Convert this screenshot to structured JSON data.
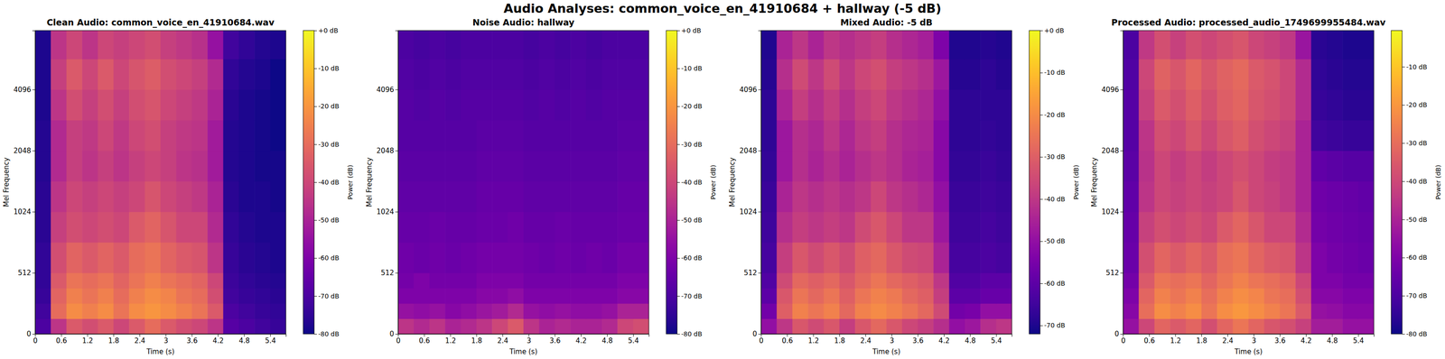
{
  "title": "Audio Analyses: common_voice_en_41910684 + hallway (-5 dB)",
  "chart_data": [
    {
      "type": "heatmap",
      "title": "Clean Audio: common_voice_en_41910684.wav",
      "x_label": "Time (s)",
      "y_label": "Mel Frequency",
      "color": "plasma",
      "xlim": [
        0,
        5.76
      ],
      "xticks": [
        0,
        0.6,
        1.2,
        1.8,
        2.4,
        3,
        3.6,
        4.2,
        4.8,
        5.4
      ],
      "ylim": [
        0,
        8000
      ],
      "yticks": [
        0,
        512,
        1024,
        2048,
        4096
      ],
      "time_edges": [
        0,
        0.36,
        0.72,
        1.08,
        1.44,
        1.8,
        2.16,
        2.52,
        2.88,
        3.24,
        3.6,
        3.96,
        4.32,
        4.68,
        5.04,
        5.4,
        5.76
      ],
      "freq_edges": [
        0,
        128,
        256,
        384,
        512,
        768,
        1024,
        1448,
        2048,
        2896,
        4096,
        5793,
        8000
      ],
      "cells": [
        [
          -70,
          -45,
          -35,
          -38,
          -35,
          -40,
          -35,
          -30,
          -35,
          -38,
          -40,
          -45,
          -68,
          -70,
          -72,
          -74
        ],
        [
          -72,
          -30,
          -22,
          -25,
          -22,
          -28,
          -22,
          -20,
          -22,
          -25,
          -28,
          -35,
          -70,
          -72,
          -74,
          -75
        ],
        [
          -74,
          -32,
          -25,
          -28,
          -25,
          -30,
          -25,
          -22,
          -24,
          -28,
          -30,
          -38,
          -72,
          -74,
          -75,
          -76
        ],
        [
          -75,
          -35,
          -28,
          -30,
          -28,
          -32,
          -28,
          -25,
          -28,
          -30,
          -32,
          -40,
          -73,
          -75,
          -76,
          -77
        ],
        [
          -75,
          -38,
          -32,
          -35,
          -32,
          -35,
          -30,
          -28,
          -32,
          -35,
          -36,
          -45,
          -74,
          -76,
          -77,
          -78
        ],
        [
          -76,
          -42,
          -38,
          -40,
          -38,
          -40,
          -35,
          -32,
          -36,
          -40,
          -40,
          -48,
          -75,
          -77,
          -78,
          -78
        ],
        [
          -76,
          -45,
          -40,
          -42,
          -40,
          -42,
          -40,
          -36,
          -40,
          -42,
          -44,
          -50,
          -76,
          -78,
          -78,
          -79
        ],
        [
          -77,
          -48,
          -42,
          -45,
          -42,
          -45,
          -42,
          -40,
          -42,
          -45,
          -46,
          -52,
          -77,
          -78,
          -79,
          -79
        ],
        [
          -77,
          -48,
          -42,
          -44,
          -40,
          -44,
          -40,
          -38,
          -42,
          -44,
          -45,
          -52,
          -77,
          -78,
          -79,
          -80
        ],
        [
          -78,
          -45,
          -38,
          -42,
          -38,
          -42,
          -38,
          -36,
          -40,
          -42,
          -44,
          -50,
          -76,
          -78,
          -79,
          -80
        ],
        [
          -78,
          -42,
          -35,
          -40,
          -35,
          -40,
          -36,
          -34,
          -38,
          -40,
          -42,
          -48,
          -75,
          -77,
          -78,
          -80
        ],
        [
          -78,
          -45,
          -40,
          -45,
          -40,
          -42,
          -40,
          -38,
          -42,
          -44,
          -46,
          -55,
          -72,
          -75,
          -77,
          -78
        ]
      ],
      "colorbar": {
        "label": "Power (dB)",
        "range": [
          -80,
          0
        ],
        "ticks": [
          {
            "value": 0,
            "label": "+0 dB"
          },
          {
            "value": -10,
            "label": "-10 dB"
          },
          {
            "value": -20,
            "label": "-20 dB"
          },
          {
            "value": -30,
            "label": "-30 dB"
          },
          {
            "value": -40,
            "label": "-40 dB"
          },
          {
            "value": -50,
            "label": "-50 dB"
          },
          {
            "value": -60,
            "label": "-60 dB"
          },
          {
            "value": -70,
            "label": "-70 dB"
          },
          {
            "value": -80,
            "label": "-80 dB"
          }
        ]
      }
    },
    {
      "type": "heatmap",
      "title": "Noise Audio: hallway",
      "x_label": "Time (s)",
      "y_label": "Mel Frequency",
      "color": "plasma",
      "xlim": [
        0,
        5.76
      ],
      "xticks": [
        0,
        0.6,
        1.2,
        1.8,
        2.4,
        3,
        3.6,
        4.2,
        4.8,
        5.4
      ],
      "ylim": [
        0,
        8000
      ],
      "yticks": [
        0,
        512,
        1024,
        2048,
        4096
      ],
      "time_edges": [
        0,
        0.36,
        0.72,
        1.08,
        1.44,
        1.8,
        2.16,
        2.52,
        2.88,
        3.24,
        3.6,
        3.96,
        4.32,
        4.68,
        5.04,
        5.4,
        5.76
      ],
      "freq_edges": [
        0,
        128,
        256,
        384,
        512,
        768,
        1024,
        1448,
        2048,
        2896,
        4096,
        5793,
        8000
      ],
      "cells": [
        [
          -45,
          -48,
          -45,
          -50,
          -48,
          -45,
          -40,
          -35,
          -45,
          -50,
          -48,
          -50,
          -50,
          -48,
          -40,
          -38
        ],
        [
          -55,
          -56,
          -55,
          -58,
          -56,
          -54,
          -52,
          -48,
          -55,
          -56,
          -55,
          -56,
          -56,
          -55,
          -50,
          -50
        ],
        [
          -60,
          -60,
          -60,
          -60,
          -60,
          -58,
          -58,
          -56,
          -60,
          -60,
          -60,
          -60,
          -60,
          -60,
          -58,
          -58
        ],
        [
          -62,
          -60,
          -62,
          -62,
          -62,
          -60,
          -60,
          -60,
          -62,
          -62,
          -62,
          -62,
          -62,
          -62,
          -60,
          -60
        ],
        [
          -63,
          -64,
          -63,
          -64,
          -63,
          -62,
          -62,
          -62,
          -63,
          -64,
          -63,
          -64,
          -63,
          -64,
          -62,
          -62
        ],
        [
          -65,
          -65,
          -64,
          -65,
          -65,
          -64,
          -64,
          -63,
          -65,
          -65,
          -64,
          -65,
          -65,
          -65,
          -64,
          -64
        ],
        [
          -66,
          -66,
          -66,
          -66,
          -66,
          -65,
          -65,
          -65,
          -66,
          -66,
          -66,
          -66,
          -66,
          -66,
          -65,
          -65
        ],
        [
          -67,
          -67,
          -67,
          -67,
          -67,
          -66,
          -66,
          -66,
          -67,
          -67,
          -67,
          -67,
          -67,
          -67,
          -66,
          -66
        ],
        [
          -68,
          -68,
          -68,
          -68,
          -68,
          -67,
          -67,
          -67,
          -68,
          -68,
          -68,
          -68,
          -68,
          -68,
          -67,
          -67
        ],
        [
          -68,
          -69,
          -68,
          -69,
          -68,
          -68,
          -68,
          -68,
          -69,
          -68,
          -69,
          -68,
          -69,
          -68,
          -68,
          -68
        ],
        [
          -69,
          -70,
          -69,
          -70,
          -69,
          -69,
          -69,
          -69,
          -70,
          -69,
          -70,
          -69,
          -70,
          -69,
          -69,
          -69
        ],
        [
          -70,
          -71,
          -70,
          -71,
          -70,
          -70,
          -70,
          -70,
          -71,
          -70,
          -71,
          -70,
          -71,
          -70,
          -70,
          -70
        ]
      ],
      "colorbar": {
        "label": "Power (dB)",
        "range": [
          -80,
          0
        ],
        "ticks": [
          {
            "value": 0,
            "label": "+0 dB"
          },
          {
            "value": -10,
            "label": "-10 dB"
          },
          {
            "value": -20,
            "label": "-20 dB"
          },
          {
            "value": -30,
            "label": "-30 dB"
          },
          {
            "value": -40,
            "label": "-40 dB"
          },
          {
            "value": -50,
            "label": "-50 dB"
          },
          {
            "value": -60,
            "label": "-60 dB"
          },
          {
            "value": -70,
            "label": "-70 dB"
          },
          {
            "value": -80,
            "label": "-80 dB"
          }
        ]
      }
    },
    {
      "type": "heatmap",
      "title": "Mixed Audio: -5 dB",
      "x_label": "Time (s)",
      "y_label": "Mel Frequency",
      "color": "plasma",
      "xlim": [
        0,
        5.76
      ],
      "xticks": [
        0,
        0.6,
        1.2,
        1.8,
        2.4,
        3,
        3.6,
        4.2,
        4.8,
        5.4
      ],
      "ylim": [
        0,
        8000
      ],
      "yticks": [
        0,
        512,
        1024,
        2048,
        4096
      ],
      "time_edges": [
        0,
        0.36,
        0.72,
        1.08,
        1.44,
        1.8,
        2.16,
        2.52,
        2.88,
        3.24,
        3.6,
        3.96,
        4.32,
        4.68,
        5.04,
        5.4,
        5.76
      ],
      "freq_edges": [
        0,
        128,
        256,
        384,
        512,
        768,
        1024,
        1448,
        2048,
        2896,
        4096,
        5793,
        8000
      ],
      "cells": [
        [
          -50,
          -40,
          -32,
          -35,
          -32,
          -38,
          -32,
          -28,
          -32,
          -36,
          -38,
          -42,
          -50,
          -48,
          -42,
          -40
        ],
        [
          -56,
          -30,
          -22,
          -25,
          -22,
          -28,
          -22,
          -20,
          -22,
          -25,
          -28,
          -35,
          -56,
          -55,
          -50,
          -50
        ],
        [
          -60,
          -32,
          -25,
          -28,
          -25,
          -30,
          -25,
          -22,
          -24,
          -28,
          -30,
          -38,
          -60,
          -60,
          -58,
          -58
        ],
        [
          -62,
          -35,
          -28,
          -30,
          -28,
          -32,
          -28,
          -25,
          -28,
          -30,
          -32,
          -40,
          -62,
          -62,
          -60,
          -60
        ],
        [
          -64,
          -38,
          -32,
          -35,
          -32,
          -35,
          -30,
          -28,
          -32,
          -35,
          -36,
          -45,
          -64,
          -64,
          -63,
          -64
        ],
        [
          -65,
          -42,
          -38,
          -40,
          -38,
          -40,
          -35,
          -32,
          -36,
          -40,
          -40,
          -48,
          -65,
          -65,
          -64,
          -65
        ],
        [
          -66,
          -45,
          -40,
          -42,
          -40,
          -42,
          -40,
          -36,
          -40,
          -42,
          -44,
          -50,
          -66,
          -66,
          -65,
          -66
        ],
        [
          -67,
          -48,
          -42,
          -45,
          -42,
          -45,
          -42,
          -40,
          -42,
          -45,
          -46,
          -52,
          -67,
          -67,
          -66,
          -67
        ],
        [
          -68,
          -48,
          -42,
          -44,
          -40,
          -44,
          -40,
          -38,
          -42,
          -44,
          -45,
          -52,
          -68,
          -68,
          -67,
          -68
        ],
        [
          -68,
          -45,
          -38,
          -42,
          -38,
          -42,
          -38,
          -36,
          -40,
          -42,
          -44,
          -50,
          -68,
          -68,
          -68,
          -68
        ],
        [
          -69,
          -42,
          -35,
          -40,
          -35,
          -40,
          -36,
          -34,
          -38,
          -40,
          -42,
          -48,
          -69,
          -69,
          -68,
          -69
        ],
        [
          -70,
          -45,
          -40,
          -45,
          -40,
          -42,
          -40,
          -38,
          -42,
          -44,
          -46,
          -54,
          -70,
          -70,
          -69,
          -70
        ]
      ],
      "colorbar": {
        "label": "Power (dB)",
        "range": [
          -72,
          0
        ],
        "ticks": [
          {
            "value": 0,
            "label": "+0 dB"
          },
          {
            "value": -10,
            "label": "-10 dB"
          },
          {
            "value": -20,
            "label": "-20 dB"
          },
          {
            "value": -30,
            "label": "-30 dB"
          },
          {
            "value": -40,
            "label": "-40 dB"
          },
          {
            "value": -50,
            "label": "-50 dB"
          },
          {
            "value": -60,
            "label": "-60 dB"
          },
          {
            "value": -70,
            "label": "-70 dB"
          }
        ]
      }
    },
    {
      "type": "heatmap",
      "title": "Processed Audio: processed_audio_1749699955484.wav",
      "x_label": "Time (s)",
      "y_label": "Mel Frequency",
      "color": "plasma",
      "xlim": [
        0,
        5.76
      ],
      "xticks": [
        0,
        0.6,
        1.2,
        1.8,
        2.4,
        3,
        3.6,
        4.2,
        4.8,
        5.4
      ],
      "ylim": [
        0,
        8000
      ],
      "yticks": [
        0,
        512,
        1024,
        2048,
        4096
      ],
      "time_edges": [
        0,
        0.36,
        0.72,
        1.08,
        1.44,
        1.8,
        2.16,
        2.52,
        2.88,
        3.24,
        3.6,
        3.96,
        4.32,
        4.68,
        5.04,
        5.4,
        5.76
      ],
      "freq_edges": [
        0,
        128,
        256,
        384,
        512,
        768,
        1024,
        1448,
        2048,
        2896,
        4096,
        5793,
        8000
      ],
      "cells": [
        [
          -55,
          -40,
          -32,
          -35,
          -32,
          -38,
          -32,
          -28,
          -32,
          -36,
          -38,
          -42,
          -52,
          -52,
          -55,
          -55
        ],
        [
          -58,
          -30,
          -22,
          -25,
          -22,
          -28,
          -22,
          -20,
          -22,
          -25,
          -28,
          -35,
          -55,
          -56,
          -58,
          -58
        ],
        [
          -60,
          -32,
          -25,
          -28,
          -25,
          -30,
          -25,
          -22,
          -24,
          -28,
          -30,
          -38,
          -58,
          -58,
          -60,
          -60
        ],
        [
          -62,
          -35,
          -28,
          -30,
          -28,
          -32,
          -28,
          -25,
          -28,
          -30,
          -32,
          -40,
          -60,
          -60,
          -62,
          -62
        ],
        [
          -64,
          -38,
          -32,
          -35,
          -32,
          -35,
          -30,
          -28,
          -32,
          -35,
          -36,
          -45,
          -60,
          -62,
          -63,
          -64
        ],
        [
          -65,
          -42,
          -38,
          -40,
          -38,
          -40,
          -35,
          -32,
          -36,
          -40,
          -40,
          -48,
          -62,
          -63,
          -64,
          -65
        ],
        [
          -66,
          -45,
          -40,
          -42,
          -40,
          -42,
          -40,
          -36,
          -40,
          -42,
          -44,
          -50,
          -63,
          -64,
          -65,
          -66
        ],
        [
          -67,
          -46,
          -40,
          -43,
          -40,
          -43,
          -40,
          -38,
          -40,
          -43,
          -44,
          -50,
          -66,
          -67,
          -68,
          -68
        ],
        [
          -68,
          -45,
          -38,
          -40,
          -36,
          -40,
          -36,
          -34,
          -38,
          -40,
          -42,
          -50,
          -72,
          -73,
          -74,
          -74
        ],
        [
          -68,
          -42,
          -35,
          -38,
          -34,
          -38,
          -34,
          -32,
          -36,
          -38,
          -40,
          -48,
          -74,
          -75,
          -76,
          -76
        ],
        [
          -69,
          -40,
          -33,
          -36,
          -32,
          -36,
          -33,
          -31,
          -35,
          -37,
          -40,
          -48,
          -75,
          -76,
          -77,
          -77
        ],
        [
          -70,
          -44,
          -38,
          -42,
          -38,
          -40,
          -38,
          -36,
          -40,
          -42,
          -44,
          -54,
          -76,
          -77,
          -78,
          -78
        ]
      ],
      "colorbar": {
        "label": "Power (dB)",
        "range": [
          -80,
          -0.5
        ],
        "ticks": [
          {
            "value": -10,
            "label": "-10 dB"
          },
          {
            "value": -20,
            "label": "-20 dB"
          },
          {
            "value": -30,
            "label": "-30 dB"
          },
          {
            "value": -40,
            "label": "-40 dB"
          },
          {
            "value": -50,
            "label": "-50 dB"
          },
          {
            "value": -60,
            "label": "-60 dB"
          },
          {
            "value": -70,
            "label": "-70 dB"
          },
          {
            "value": -80,
            "label": "-80 dB"
          }
        ]
      }
    }
  ]
}
